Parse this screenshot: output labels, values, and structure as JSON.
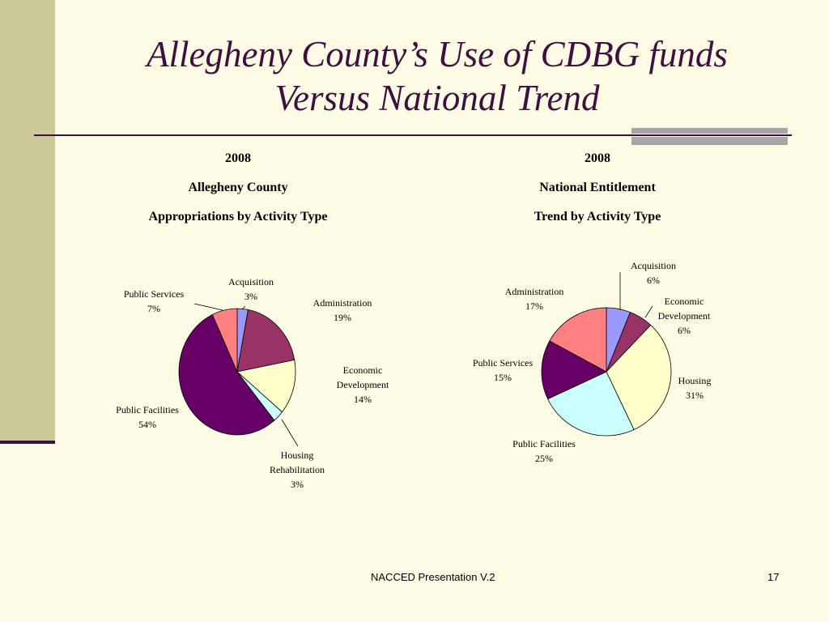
{
  "slide": {
    "title_line1": "Allegheny County’s Use of CDBG funds",
    "title_line2": "Versus National Trend",
    "footer_text": "NACCED Presentation V.2",
    "page_number": "17"
  },
  "colors": {
    "background": "#FEFCE4",
    "sidebar": "#CCC99A",
    "title": "#3F0F3F",
    "accent_rule": "#3F0F3F",
    "gray_bars": "#A6A6A6"
  },
  "chart_data": [
    {
      "type": "pie",
      "heading": [
        "2008",
        "Allegheny County",
        "Appropriations by Activity Type"
      ],
      "slices": [
        {
          "label": [
            "Acquisition"
          ],
          "value": 3,
          "pct_label": "3%",
          "color": "#9999FF"
        },
        {
          "label": [
            "Administration"
          ],
          "value": 19,
          "pct_label": "19%",
          "color": "#993366"
        },
        {
          "label": [
            "Economic",
            "Development"
          ],
          "value": 14,
          "pct_label": "14%",
          "color": "#FFFFCC"
        },
        {
          "label": [
            "Housing",
            "Rehabilitation"
          ],
          "value": 3,
          "pct_label": "3%",
          "color": "#CCFFFF"
        },
        {
          "label": [
            "Public Facilities"
          ],
          "value": 54,
          "pct_label": "54%",
          "color": "#660066"
        },
        {
          "label": [
            "Public Services"
          ],
          "value": 7,
          "pct_label": "7%",
          "color": "#FF8080"
        }
      ]
    },
    {
      "type": "pie",
      "heading": [
        "2008",
        "National Entitlement",
        "Trend by Activity Type"
      ],
      "slices": [
        {
          "label": [
            "Acquisition"
          ],
          "value": 6,
          "pct_label": "6%",
          "color": "#9999FF"
        },
        {
          "label": [
            "Economic",
            "Development"
          ],
          "value": 6,
          "pct_label": "6%",
          "color": "#993366"
        },
        {
          "label": [
            "Housing"
          ],
          "value": 31,
          "pct_label": "31%",
          "color": "#FFFFCC"
        },
        {
          "label": [
            "Public Facilities"
          ],
          "value": 25,
          "pct_label": "25%",
          "color": "#CCFFFF"
        },
        {
          "label": [
            "Public Services"
          ],
          "value": 15,
          "pct_label": "15%",
          "color": "#660066"
        },
        {
          "label": [
            "Administration"
          ],
          "value": 17,
          "pct_label": "17%",
          "color": "#FF8080"
        }
      ]
    }
  ]
}
